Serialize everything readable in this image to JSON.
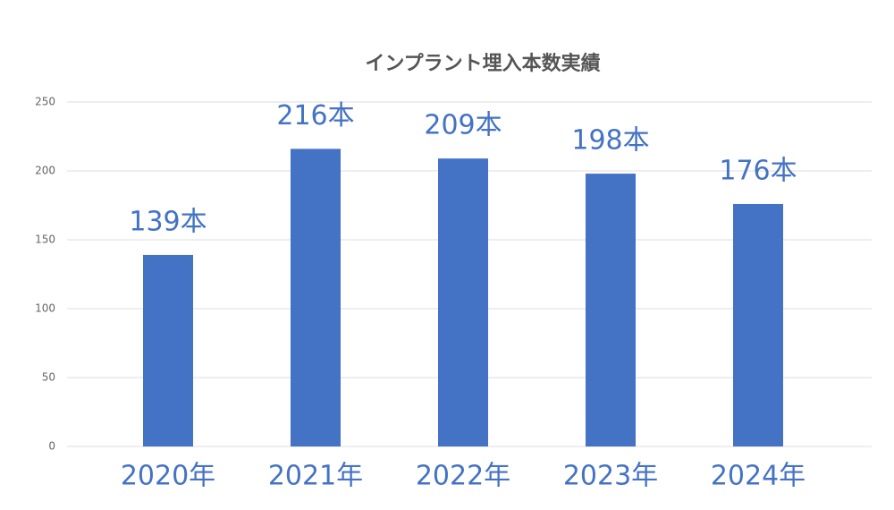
{
  "chart_data": {
    "type": "bar",
    "title": "インプラント埋入本数実績",
    "categories": [
      "2020年",
      "2021年",
      "2022年",
      "2023年",
      "2024年"
    ],
    "values": [
      139,
      216,
      209,
      198,
      176
    ],
    "value_labels": [
      "139本",
      "216本",
      "209本",
      "198本",
      "176本"
    ],
    "color": "#4472c4",
    "ylim": [
      0,
      250
    ],
    "yticks": [
      0,
      50,
      100,
      150,
      200,
      250
    ],
    "grid": true
  }
}
